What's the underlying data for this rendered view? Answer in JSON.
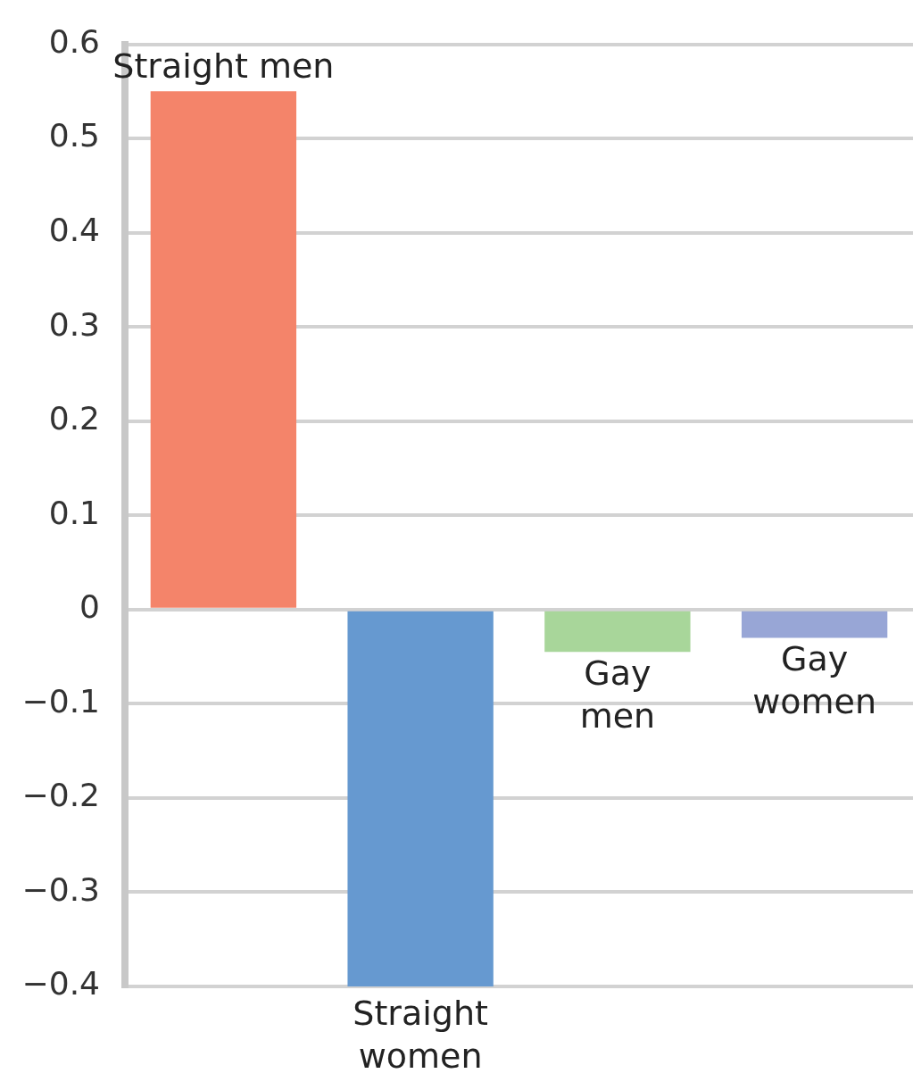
{
  "chart_data": {
    "type": "bar",
    "categories": [
      "Straight men",
      "Straight women",
      "Gay men",
      "Gay women"
    ],
    "values": [
      0.55,
      -0.4,
      -0.045,
      -0.03
    ],
    "colors": [
      "#f4846a",
      "#6699d0",
      "#a8d69a",
      "#98a6d6"
    ],
    "ylim": [
      -0.4,
      0.6
    ],
    "yticks": [
      {
        "value": -0.4,
        "label": "−0.4"
      },
      {
        "value": -0.3,
        "label": "−0.3"
      },
      {
        "value": -0.2,
        "label": "−0.2"
      },
      {
        "value": -0.1,
        "label": "−0.1"
      },
      0,
      0.1,
      0.2,
      0.3,
      0.4,
      0.5,
      0.6
    ],
    "grid": "y",
    "tick_labels": "y"
  }
}
